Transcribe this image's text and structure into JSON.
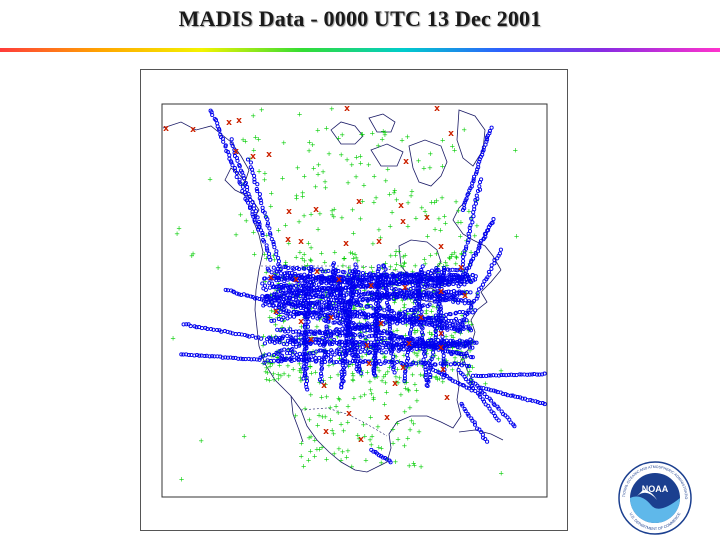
{
  "slide": {
    "title": "MADIS Data - 0000 UTC 13 Dec 2001"
  },
  "map": {
    "legend_symbols": {
      "surface_station": {
        "glyph": "+",
        "color": "#00cc00"
      },
      "aircraft_report": {
        "glyph": "o",
        "color": "#0000ee"
      },
      "upper_air_station": {
        "glyph": "x",
        "color": "#cc2200"
      }
    },
    "coastline_color": "#1a1a66"
  },
  "logo": {
    "name": "NOAA",
    "ring_text": "NATIONAL OCEANIC AND ATMOSPHERIC ADMINISTRATION",
    "bottom_text": "U.S. DEPARTMENT OF COMMERCE",
    "colors": {
      "dark_blue": "#1b3f8f",
      "light_blue": "#5fb8ea"
    }
  }
}
